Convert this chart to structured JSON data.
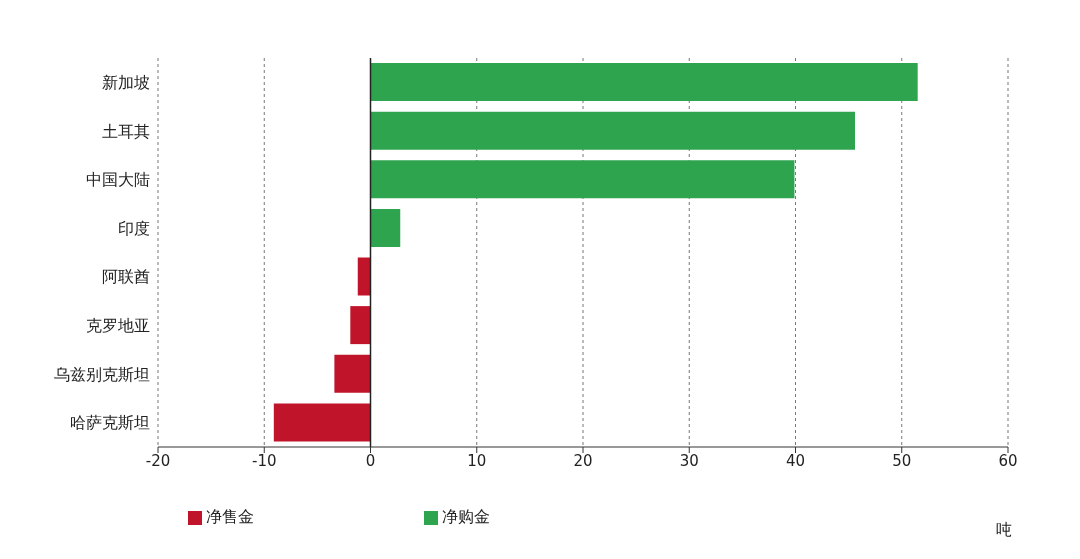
{
  "chart_data": {
    "type": "bar",
    "orientation": "horizontal",
    "stacked": true,
    "xlabel": "吨",
    "categories": [
      "新加坡",
      "土耳其",
      "中国大陆",
      "印度",
      "阿联酋",
      "克罗地亚",
      "乌兹别克斯坦",
      "哈萨克斯坦"
    ],
    "series": [
      {
        "name": "净购金",
        "color": "#2ea44f",
        "values": [
          51.5,
          45.6,
          39.9,
          2.8,
          null,
          null,
          null,
          null
        ]
      },
      {
        "name": "净售金",
        "color": "#c0142a",
        "values": [
          null,
          null,
          null,
          null,
          -1.2,
          -1.9,
          -3.4,
          -9.1
        ]
      }
    ],
    "xlim": [
      -20,
      60
    ],
    "xticks": [
      -20,
      -10,
      0,
      10,
      20,
      30,
      40,
      50,
      60
    ],
    "grid": "x",
    "legend": "bottom"
  }
}
